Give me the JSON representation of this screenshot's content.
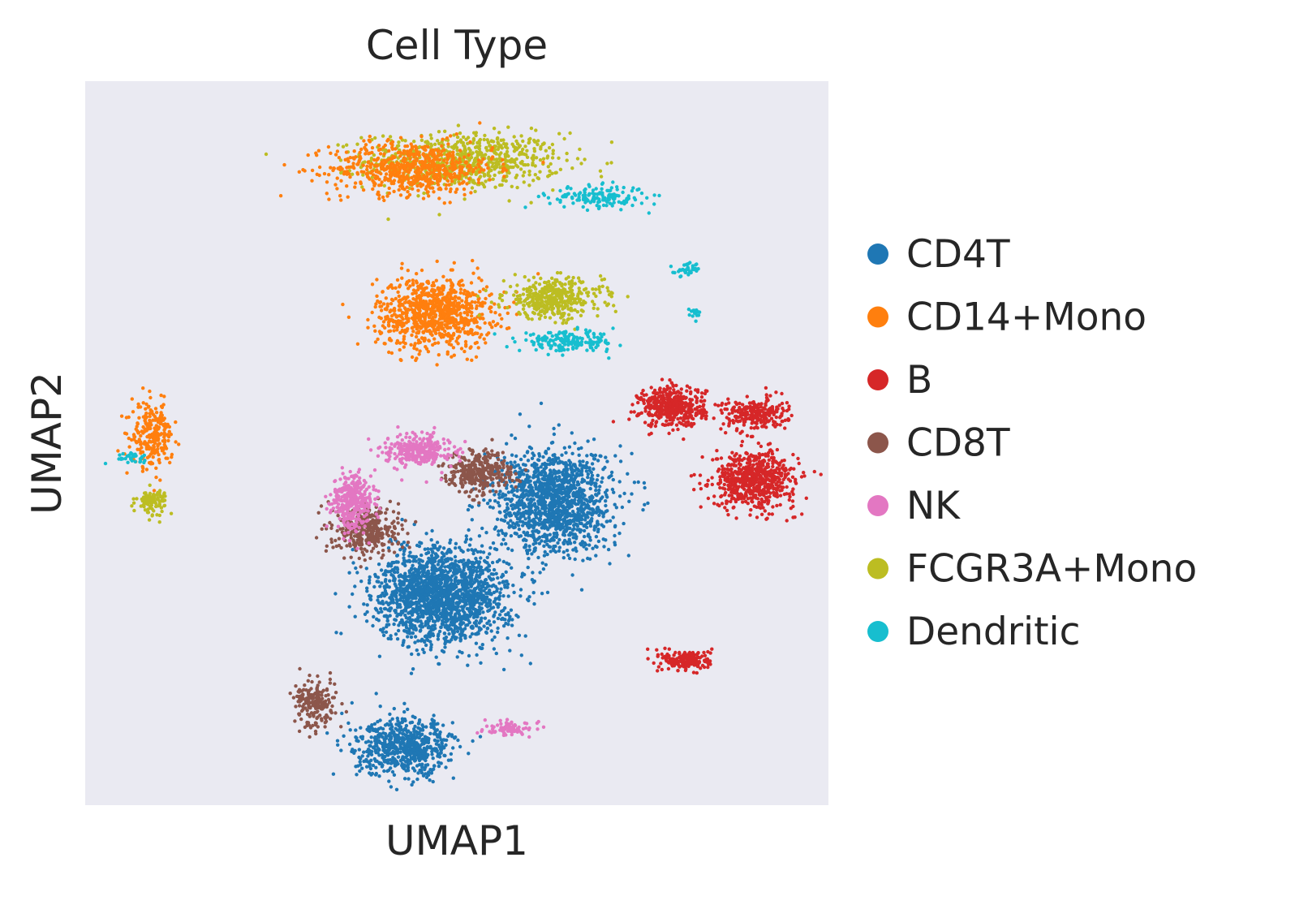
{
  "chart_data": {
    "type": "scatter",
    "title": "Cell Type",
    "xlabel": "UMAP1",
    "ylabel": "UMAP2",
    "xlim": [
      0,
      100
    ],
    "ylim": [
      0,
      100
    ],
    "xticks": [],
    "yticks": [],
    "grid": false,
    "background_color": "#eaeaf2",
    "legend_position": "right",
    "series": [
      {
        "name": "CD4T",
        "color": "#1f77b4"
      },
      {
        "name": "CD14+Mono",
        "color": "#ff7f0e"
      },
      {
        "name": "B",
        "color": "#d62728"
      },
      {
        "name": "CD8T",
        "color": "#8c564b"
      },
      {
        "name": "NK",
        "color": "#e377c2"
      },
      {
        "name": "FCGR3A+Mono",
        "color": "#bcbd22"
      },
      {
        "name": "Dendritic",
        "color": "#17becf"
      }
    ],
    "clusters": [
      {
        "series": "FCGR3A+Mono",
        "center": [
          51,
          89
        ],
        "spread": [
          12,
          3.5
        ],
        "n": 700
      },
      {
        "series": "CD14+Mono",
        "center": [
          44,
          88
        ],
        "spread": [
          10,
          3.3
        ],
        "n": 650
      },
      {
        "series": "Dendritic",
        "center": [
          69,
          84
        ],
        "spread": [
          6,
          1.4
        ],
        "n": 160
      },
      {
        "series": "CD14+Mono",
        "center": [
          47,
          68
        ],
        "spread": [
          7,
          4.5
        ],
        "n": 900
      },
      {
        "series": "FCGR3A+Mono",
        "center": [
          63,
          70
        ],
        "spread": [
          6,
          2.5
        ],
        "n": 400
      },
      {
        "series": "Dendritic",
        "center": [
          65,
          64
        ],
        "spread": [
          6,
          1.2
        ],
        "n": 180
      },
      {
        "series": "Dendritic",
        "center": [
          81,
          74
        ],
        "spread": [
          1.5,
          0.8
        ],
        "n": 40
      },
      {
        "series": "Dendritic",
        "center": [
          82,
          68
        ],
        "spread": [
          0.8,
          0.8
        ],
        "n": 15
      },
      {
        "series": "CD14+Mono",
        "center": [
          9,
          51
        ],
        "spread": [
          2.5,
          4
        ],
        "n": 250
      },
      {
        "series": "FCGR3A+Mono",
        "center": [
          9,
          42
        ],
        "spread": [
          1.8,
          1.5
        ],
        "n": 100
      },
      {
        "series": "Dendritic",
        "center": [
          6,
          48
        ],
        "spread": [
          2.5,
          0.6
        ],
        "n": 30
      },
      {
        "series": "B",
        "center": [
          79,
          55
        ],
        "spread": [
          4,
          2.5
        ],
        "n": 450
      },
      {
        "series": "B",
        "center": [
          90,
          45
        ],
        "spread": [
          5,
          3.5
        ],
        "n": 650
      },
      {
        "series": "B",
        "center": [
          90,
          54
        ],
        "spread": [
          4,
          2
        ],
        "n": 250
      },
      {
        "series": "B",
        "center": [
          81,
          20
        ],
        "spread": [
          3,
          1.3
        ],
        "n": 200
      },
      {
        "series": "CD4T",
        "center": [
          63,
          42
        ],
        "spread": [
          7,
          6.5
        ],
        "n": 1400
      },
      {
        "series": "CD4T",
        "center": [
          48,
          29
        ],
        "spread": [
          8,
          6
        ],
        "n": 1800
      },
      {
        "series": "CD4T",
        "center": [
          43,
          8
        ],
        "spread": [
          6,
          3.5
        ],
        "n": 650
      },
      {
        "series": "CD8T",
        "center": [
          53,
          46
        ],
        "spread": [
          4,
          2.5
        ],
        "n": 350
      },
      {
        "series": "CD8T",
        "center": [
          38,
          38
        ],
        "spread": [
          4,
          3
        ],
        "n": 350
      },
      {
        "series": "CD8T",
        "center": [
          31,
          14
        ],
        "spread": [
          2.5,
          3
        ],
        "n": 200
      },
      {
        "series": "NK",
        "center": [
          45,
          49
        ],
        "spread": [
          4,
          2
        ],
        "n": 300
      },
      {
        "series": "NK",
        "center": [
          36,
          42
        ],
        "spread": [
          2.5,
          3.5
        ],
        "n": 350
      },
      {
        "series": "NK",
        "center": [
          57,
          10.5
        ],
        "spread": [
          3,
          0.8
        ],
        "n": 80
      }
    ]
  }
}
